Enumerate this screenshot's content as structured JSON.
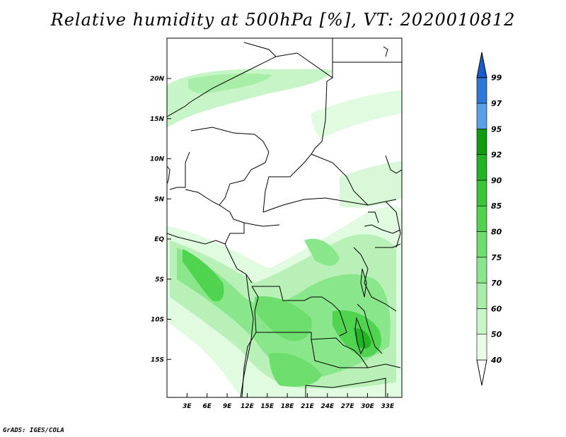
{
  "title": "Relative humidity at 500hPa [%], VT: 2020010812",
  "credit": "GrADS: IGES/COLA",
  "map": {
    "lat_ticks": [
      {
        "label": "20N",
        "lat": 20
      },
      {
        "label": "15N",
        "lat": 15
      },
      {
        "label": "10N",
        "lat": 10
      },
      {
        "label": "5N",
        "lat": 5
      },
      {
        "label": "EQ",
        "lat": 0
      },
      {
        "label": "5S",
        "lat": -5
      },
      {
        "label": "10S",
        "lat": -10
      },
      {
        "label": "15S",
        "lat": -15
      }
    ],
    "lon_ticks": [
      {
        "label": "3E",
        "lon": 3
      },
      {
        "label": "6E",
        "lon": 6
      },
      {
        "label": "9E",
        "lon": 9
      },
      {
        "label": "12E",
        "lon": 12
      },
      {
        "label": "15E",
        "lon": 15
      },
      {
        "label": "18E",
        "lon": 18
      },
      {
        "label": "21E",
        "lon": 21
      },
      {
        "label": "24E",
        "lon": 24
      },
      {
        "label": "27E",
        "lon": 27
      },
      {
        "label": "30E",
        "lon": 30
      },
      {
        "label": "33E",
        "lon": 33
      }
    ]
  },
  "colorbar": {
    "levels": [
      {
        "label": "40",
        "color": "#e8fce8"
      },
      {
        "label": "50",
        "color": "#c8f5c8"
      },
      {
        "label": "60",
        "color": "#a8eea8"
      },
      {
        "label": "70",
        "color": "#8ae68a"
      },
      {
        "label": "75",
        "color": "#6ddd6d"
      },
      {
        "label": "80",
        "color": "#50d450"
      },
      {
        "label": "85",
        "color": "#38c638"
      },
      {
        "label": "90",
        "color": "#22b422"
      },
      {
        "label": "92",
        "color": "#109a10"
      },
      {
        "label": "95",
        "color": "#5aa0e8"
      },
      {
        "label": "97",
        "color": "#2e78d8"
      },
      {
        "label": "99",
        "color": ""
      }
    ],
    "top_arrow_color": "#1a5cc8",
    "bottom_arrow_color": "#ffffff"
  }
}
